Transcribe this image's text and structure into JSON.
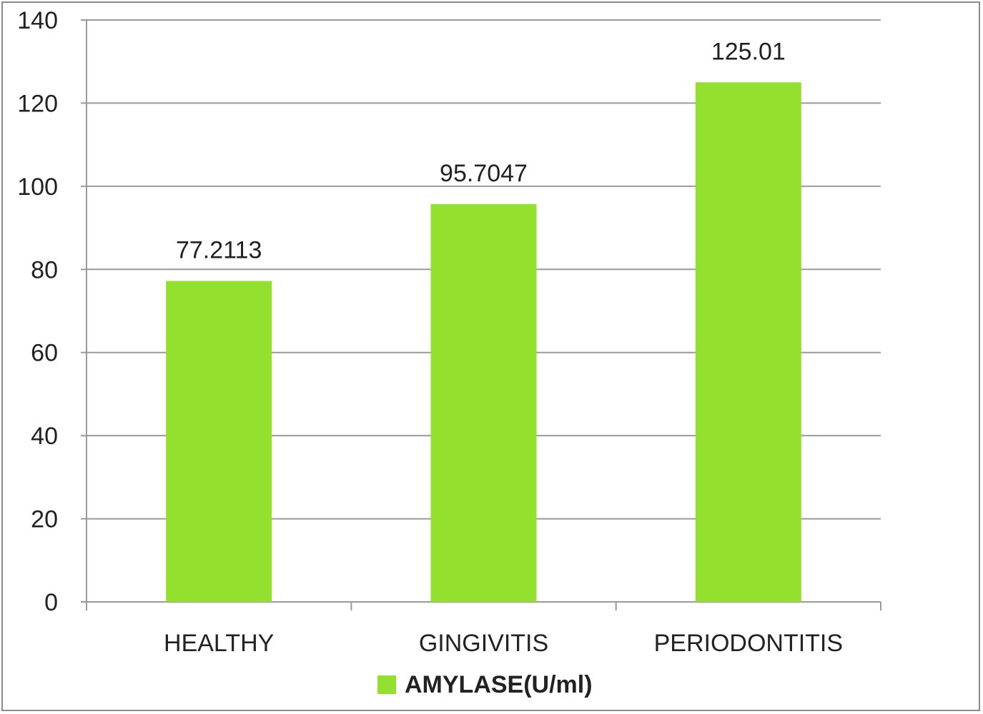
{
  "chart_data": {
    "type": "bar",
    "categories": [
      "HEALTHY",
      "GINGIVITIS",
      "PERIODONTITIS"
    ],
    "series": [
      {
        "name": "AMYLASE(U/ml)",
        "values": [
          77.2113,
          95.7047,
          125.01
        ],
        "data_labels": [
          "77.2113",
          "95.7047",
          "125.01"
        ],
        "color": "#94e02e"
      }
    ],
    "y_ticks": [
      "0",
      "20",
      "40",
      "60",
      "80",
      "100",
      "120",
      "140"
    ],
    "ylim": [
      0,
      140
    ],
    "grid": true,
    "legend_position": "bottom",
    "title": "",
    "xlabel": "",
    "ylabel": ""
  },
  "colors": {
    "bar": "#94e02e",
    "grid": "#9a9a9a",
    "frame": "#8c8c8c"
  }
}
